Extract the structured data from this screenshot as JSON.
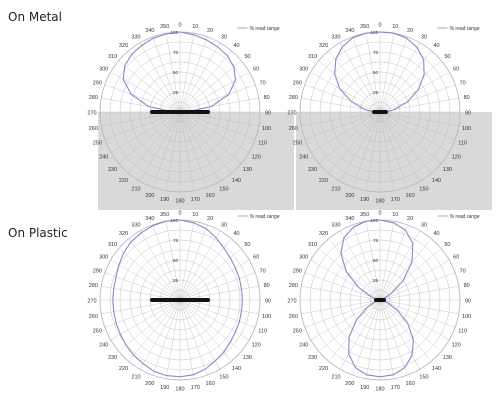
{
  "labels": {
    "metal": "On Metal",
    "plastic": "On Plastic"
  },
  "colors": {
    "pattern_line": "#8c86c8",
    "grid_line": "#b9b9b9",
    "shade": "#d9d9d9",
    "antenna": "#111111",
    "text": "#333333"
  },
  "chart_data": [
    {
      "id": "metal-left",
      "type": "polar-line",
      "legend": "% read range",
      "angle_ticks": [
        "0",
        "10",
        "20",
        "30",
        "40",
        "50",
        "60",
        "70",
        "80",
        "90",
        "100",
        "110",
        "120",
        "130",
        "140",
        "150",
        "160",
        "170",
        "180",
        "190",
        "200",
        "210",
        "220",
        "230",
        "240",
        "250",
        "260",
        "270",
        "280",
        "290",
        "300",
        "310",
        "320",
        "330",
        "340",
        "350"
      ],
      "radial_ticks": [
        "25",
        "50",
        "75",
        "100"
      ],
      "r_range": [
        0,
        100
      ],
      "shaded_lower_half": true,
      "series": [
        {
          "angles": [
            270,
            280,
            290,
            300,
            310,
            320,
            330,
            340,
            350,
            0,
            10,
            20,
            30,
            40,
            50,
            60,
            70,
            80,
            90
          ],
          "values": [
            10,
            40,
            65,
            82,
            90,
            94,
            96,
            98,
            99,
            100,
            98,
            96,
            94,
            92,
            88,
            80,
            65,
            40,
            10
          ]
        }
      ]
    },
    {
      "id": "metal-right",
      "type": "polar-line",
      "legend": "% read range",
      "angle_ticks": [
        "0",
        "10",
        "20",
        "30",
        "40",
        "50",
        "60",
        "70",
        "80",
        "90",
        "100",
        "110",
        "120",
        "130",
        "140",
        "150",
        "160",
        "170",
        "180",
        "190",
        "200",
        "210",
        "220",
        "230",
        "240",
        "250",
        "260",
        "270",
        "280",
        "290",
        "300",
        "310",
        "320",
        "330",
        "340",
        "350"
      ],
      "radial_ticks": [
        "25",
        "50",
        "75",
        "100"
      ],
      "r_range": [
        0,
        100
      ],
      "shaded_lower_half": true,
      "series": [
        {
          "angles": [
            270,
            280,
            290,
            300,
            310,
            320,
            330,
            340,
            350,
            0,
            10,
            20,
            30,
            40,
            50,
            60,
            70,
            80,
            90
          ],
          "values": [
            8,
            20,
            38,
            58,
            74,
            86,
            94,
            99,
            100,
            100,
            100,
            98,
            93,
            85,
            72,
            55,
            36,
            18,
            8
          ]
        }
      ]
    },
    {
      "id": "plastic-left",
      "type": "polar-line",
      "legend": "% read range",
      "angle_ticks": [
        "0",
        "10",
        "20",
        "30",
        "40",
        "50",
        "60",
        "70",
        "80",
        "90",
        "100",
        "110",
        "120",
        "130",
        "140",
        "150",
        "160",
        "170",
        "180",
        "190",
        "200",
        "210",
        "220",
        "230",
        "240",
        "250",
        "260",
        "270",
        "280",
        "290",
        "300",
        "310",
        "320",
        "330",
        "340",
        "350"
      ],
      "radial_ticks": [
        "25",
        "50",
        "75",
        "100"
      ],
      "r_range": [
        0,
        100
      ],
      "shaded_lower_half": false,
      "series": [
        {
          "angles": [
            0,
            10,
            20,
            30,
            40,
            50,
            60,
            70,
            80,
            90,
            100,
            110,
            120,
            130,
            140,
            150,
            160,
            170,
            180,
            190,
            200,
            210,
            220,
            230,
            240,
            250,
            260,
            270,
            280,
            290,
            300,
            310,
            320,
            330,
            340,
            350
          ],
          "values": [
            100,
            98,
            95,
            90,
            85,
            82,
            80,
            79,
            78,
            78,
            78,
            79,
            80,
            82,
            85,
            88,
            92,
            95,
            96,
            96,
            95,
            92,
            90,
            88,
            86,
            85,
            84,
            84,
            84,
            85,
            88,
            92,
            95,
            97,
            99,
            100
          ]
        }
      ]
    },
    {
      "id": "plastic-right",
      "type": "polar-line",
      "legend": "% read range",
      "angle_ticks": [
        "0",
        "10",
        "20",
        "30",
        "40",
        "50",
        "60",
        "70",
        "80",
        "90",
        "100",
        "110",
        "120",
        "130",
        "140",
        "150",
        "160",
        "170",
        "180",
        "190",
        "200",
        "210",
        "220",
        "230",
        "240",
        "250",
        "260",
        "270",
        "280",
        "290",
        "300",
        "310",
        "320",
        "330",
        "340",
        "350"
      ],
      "radial_ticks": [
        "25",
        "50",
        "75",
        "100"
      ],
      "r_range": [
        0,
        100
      ],
      "shaded_lower_half": false,
      "series": [
        {
          "angles": [
            0,
            10,
            20,
            30,
            40,
            50,
            60,
            70,
            80,
            90,
            100,
            110,
            120,
            130,
            140,
            150,
            160,
            170,
            180,
            190,
            200,
            210,
            220,
            230,
            240,
            250,
            260,
            270,
            280,
            290,
            300,
            310,
            320,
            330,
            340,
            350
          ],
          "values": [
            100,
            98,
            93,
            82,
            62,
            38,
            16,
            5,
            2,
            2,
            4,
            10,
            25,
            45,
            65,
            80,
            90,
            95,
            96,
            95,
            90,
            78,
            60,
            38,
            18,
            6,
            2,
            2,
            4,
            12,
            30,
            55,
            76,
            90,
            97,
            100
          ]
        }
      ]
    }
  ]
}
